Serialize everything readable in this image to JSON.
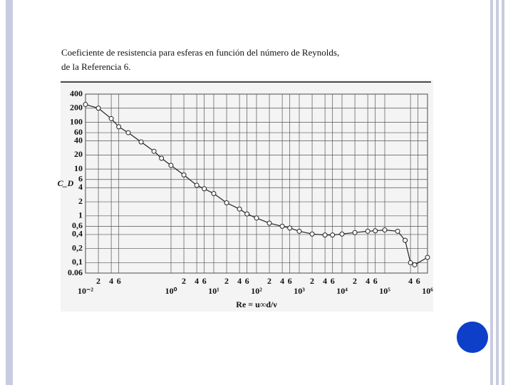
{
  "chart_data": {
    "type": "scatter",
    "title": [
      "Coeficiente de resistencia para esferas en función del número de Reynolds,",
      "de la Referencia 6."
    ],
    "xlabel": "Re = u∞d/ν",
    "ylabel": "C_D",
    "log_x": true,
    "log_y": true,
    "grid": true,
    "color": "#222222",
    "xlim": [
      0.01,
      1000000
    ],
    "ylim": [
      0.06,
      400
    ],
    "xticks": [
      {
        "value": 0.01,
        "label": "10⁻²"
      },
      {
        "value": 0.02,
        "label": "2"
      },
      {
        "value": 0.04,
        "label": "4"
      },
      {
        "value": 0.06,
        "label": "6"
      },
      {
        "value": 1,
        "label": "10⁰"
      },
      {
        "value": 2,
        "label": "2"
      },
      {
        "value": 4,
        "label": "4"
      },
      {
        "value": 6,
        "label": "6"
      },
      {
        "value": 10,
        "label": "10¹"
      },
      {
        "value": 20,
        "label": "2"
      },
      {
        "value": 40,
        "label": "4"
      },
      {
        "value": 60,
        "label": "6"
      },
      {
        "value": 100,
        "label": "10²"
      },
      {
        "value": 200,
        "label": "2"
      },
      {
        "value": 400,
        "label": "4"
      },
      {
        "value": 600,
        "label": "6"
      },
      {
        "value": 1000,
        "label": "10³"
      },
      {
        "value": 2000,
        "label": "2"
      },
      {
        "value": 4000,
        "label": "4"
      },
      {
        "value": 6000,
        "label": "6"
      },
      {
        "value": 10000,
        "label": "10⁴"
      },
      {
        "value": 20000,
        "label": "2"
      },
      {
        "value": 40000,
        "label": "4"
      },
      {
        "value": 60000,
        "label": "6"
      },
      {
        "value": 100000,
        "label": "10⁵"
      },
      {
        "value": 400000,
        "label": "4"
      },
      {
        "value": 600000,
        "label": "6"
      },
      {
        "value": 1000000,
        "label": "10⁶"
      }
    ],
    "yticks": [
      400,
      200,
      100,
      60,
      40,
      20,
      10,
      6,
      4,
      2,
      1,
      {
        "value": 0.6,
        "label": "0,6"
      },
      {
        "value": 0.4,
        "label": "0,4"
      },
      {
        "value": 0.2,
        "label": "0,2"
      },
      {
        "value": 0.1,
        "label": "0,1"
      },
      0.06
    ],
    "x": [
      0.01,
      0.02,
      0.04,
      0.06,
      0.1,
      0.2,
      0.4,
      0.6,
      1,
      2,
      4,
      6,
      10,
      20,
      40,
      60,
      100,
      200,
      400,
      600,
      1000,
      2000,
      4000,
      6000,
      10000,
      20000,
      40000,
      60000,
      100000,
      200000,
      300000,
      400000,
      500000,
      1000000
    ],
    "values": [
      240,
      200,
      120,
      80,
      60,
      38,
      24,
      17,
      12,
      7.5,
      4.5,
      3.8,
      3,
      1.9,
      1.4,
      1.1,
      0.9,
      0.7,
      0.6,
      0.55,
      0.47,
      0.41,
      0.39,
      0.39,
      0.41,
      0.44,
      0.47,
      0.48,
      0.5,
      0.47,
      0.3,
      0.1,
      0.09,
      0.13
    ]
  }
}
